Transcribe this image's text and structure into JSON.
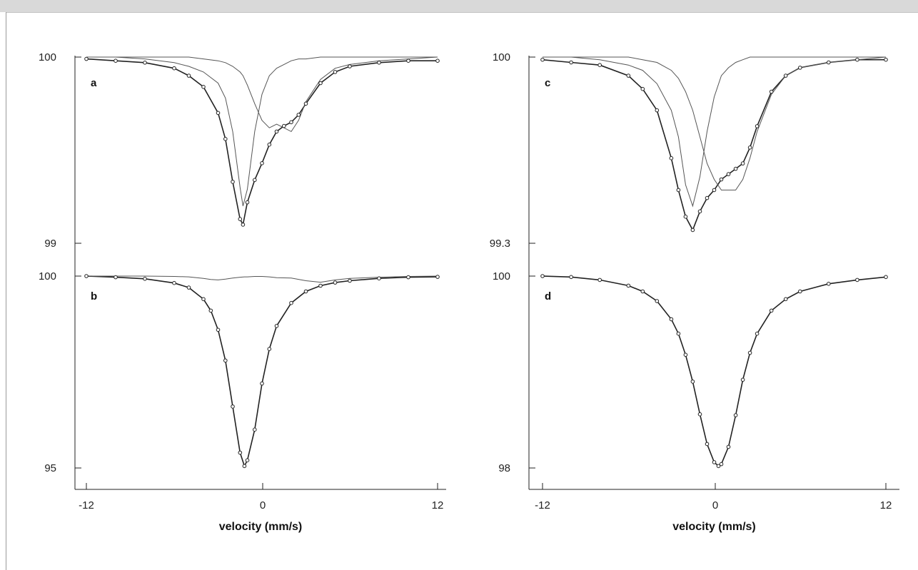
{
  "chart_data": [
    {
      "panel": "a",
      "type": "line",
      "xlabel": "velocity (mm/s)",
      "ylim": [
        99,
        100
      ],
      "y_tick_labels": [
        "100",
        "99"
      ],
      "x_tick_labels": [
        "-12",
        "0",
        "12"
      ],
      "x": [
        -12,
        -10,
        -8,
        -6,
        -5,
        -4,
        -3,
        -2.5,
        -2,
        -1.5,
        -1.3,
        -1,
        -0.5,
        0,
        0.5,
        1,
        1.5,
        2,
        2.5,
        3,
        4,
        5,
        6,
        8,
        10,
        12
      ],
      "series": [
        {
          "role": "fit",
          "values": [
            99.99,
            99.98,
            99.97,
            99.94,
            99.9,
            99.84,
            99.7,
            99.56,
            99.33,
            99.13,
            99.1,
            99.22,
            99.34,
            99.43,
            99.53,
            99.6,
            99.63,
            99.65,
            99.69,
            99.75,
            99.86,
            99.92,
            99.95,
            99.97,
            99.98,
            99.98
          ]
        },
        {
          "role": "component",
          "values": [
            100,
            100,
            99.99,
            99.97,
            99.95,
            99.92,
            99.86,
            99.78,
            99.6,
            99.3,
            99.2,
            99.29,
            99.6,
            99.8,
            99.9,
            99.94,
            99.96,
            99.98,
            99.99,
            99.99,
            100,
            100,
            100,
            100,
            100,
            100
          ]
        },
        {
          "role": "component",
          "values": [
            100,
            100,
            100,
            100,
            100,
            99.99,
            99.98,
            99.97,
            99.95,
            99.92,
            99.9,
            99.85,
            99.75,
            99.66,
            99.62,
            99.64,
            99.62,
            99.6,
            99.66,
            99.76,
            99.88,
            99.94,
            99.96,
            99.98,
            99.99,
            100
          ]
        }
      ]
    },
    {
      "panel": "b",
      "type": "line",
      "xlabel": "velocity (mm/s)",
      "ylim": [
        95,
        100
      ],
      "y_tick_labels": [
        "100",
        "95"
      ],
      "x_tick_labels": [
        "-12",
        "0",
        "12"
      ],
      "x": [
        -12,
        -10,
        -8,
        -6,
        -5,
        -4,
        -3.5,
        -3,
        -2.5,
        -2,
        -1.5,
        -1.2,
        -1,
        -0.5,
        0,
        0.5,
        1,
        2,
        3,
        4,
        5,
        6,
        8,
        10,
        12
      ],
      "series": [
        {
          "role": "fit",
          "values": [
            100,
            99.97,
            99.93,
            99.82,
            99.7,
            99.4,
            99.1,
            98.6,
            97.8,
            96.6,
            95.4,
            95.05,
            95.2,
            96,
            97.2,
            98.1,
            98.7,
            99.3,
            99.6,
            99.75,
            99.83,
            99.88,
            99.94,
            99.97,
            99.98
          ]
        },
        {
          "role": "component",
          "values": [
            100,
            100,
            100,
            99.99,
            99.98,
            99.94,
            99.91,
            99.9,
            99.92,
            99.95,
            99.97,
            99.98,
            99.98,
            99.99,
            99.99,
            99.98,
            99.96,
            99.95,
            99.88,
            99.84,
            99.9,
            99.94,
            99.97,
            99.99,
            100
          ]
        }
      ]
    },
    {
      "panel": "c",
      "type": "line",
      "xlabel": "velocity (mm/s)",
      "ylim": [
        99.3,
        100
      ],
      "y_tick_labels": [
        "100",
        "99.3"
      ],
      "x_tick_labels": [
        "-12",
        "0",
        "12"
      ],
      "x": [
        -12,
        -10,
        -8,
        -6,
        -5,
        -4,
        -3,
        -2.5,
        -2,
        -1.5,
        -1,
        -0.5,
        0,
        0.5,
        1,
        1.5,
        2,
        2.5,
        3,
        4,
        5,
        6,
        8,
        10,
        12
      ],
      "series": [
        {
          "role": "fit",
          "values": [
            99.99,
            99.98,
            99.97,
            99.93,
            99.88,
            99.8,
            99.62,
            99.5,
            99.4,
            99.35,
            99.42,
            99.47,
            99.5,
            99.54,
            99.56,
            99.58,
            99.6,
            99.66,
            99.74,
            99.87,
            99.93,
            99.96,
            99.98,
            99.99,
            99.99
          ]
        },
        {
          "role": "component",
          "values": [
            100,
            100,
            99.99,
            99.97,
            99.95,
            99.9,
            99.8,
            99.7,
            99.52,
            99.44,
            99.55,
            99.72,
            99.85,
            99.93,
            99.96,
            99.98,
            99.99,
            100,
            100,
            100,
            100,
            100,
            100,
            100,
            100
          ]
        },
        {
          "role": "component",
          "values": [
            100,
            100,
            100,
            100,
            99.99,
            99.98,
            99.95,
            99.92,
            99.87,
            99.8,
            99.7,
            99.6,
            99.54,
            99.5,
            99.5,
            99.5,
            99.54,
            99.62,
            99.72,
            99.86,
            99.93,
            99.96,
            99.98,
            99.99,
            100
          ]
        }
      ]
    },
    {
      "panel": "d",
      "type": "line",
      "xlabel": "velocity (mm/s)",
      "ylim": [
        98,
        100
      ],
      "y_tick_labels": [
        "100",
        "98"
      ],
      "x_tick_labels": [
        "-12",
        "0",
        "12"
      ],
      "x": [
        -12,
        -10,
        -8,
        -6,
        -5,
        -4,
        -3,
        -2.5,
        -2,
        -1.5,
        -1,
        -0.5,
        0,
        0.3,
        0.5,
        1,
        1.5,
        2,
        2.5,
        3,
        4,
        5,
        6,
        8,
        10,
        12
      ],
      "series": [
        {
          "role": "fit",
          "values": [
            100,
            99.99,
            99.96,
            99.9,
            99.84,
            99.74,
            99.55,
            99.4,
            99.18,
            98.9,
            98.56,
            98.25,
            98.06,
            98.02,
            98.04,
            98.22,
            98.55,
            98.92,
            99.2,
            99.4,
            99.64,
            99.76,
            99.84,
            99.92,
            99.96,
            99.99
          ]
        }
      ]
    }
  ]
}
